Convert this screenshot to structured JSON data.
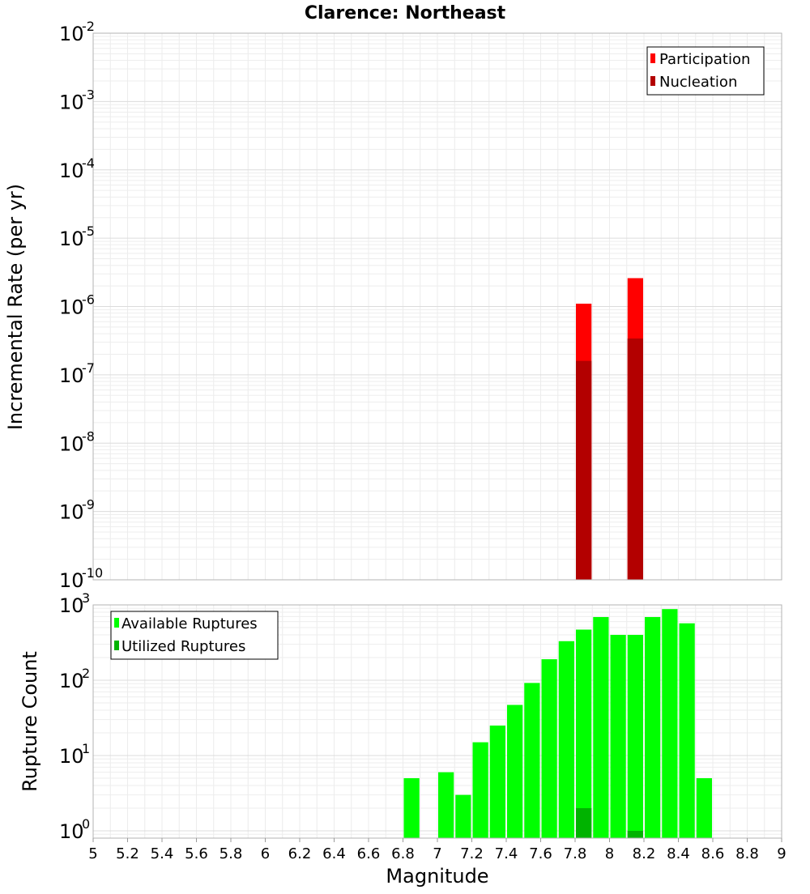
{
  "title": "Clarence: Northeast",
  "chart_data": [
    {
      "type": "bar",
      "title": "Clarence: Northeast",
      "xlabel": "",
      "ylabel": "Incremental Rate (per yr)",
      "yscale": "log",
      "ylim": [
        1e-10,
        0.01
      ],
      "xlim": [
        5,
        9
      ],
      "grid": true,
      "legend_position": "top-right",
      "y_ticks": [
        {
          "base": "10",
          "exp": "-2",
          "value": 0.01
        },
        {
          "base": "10",
          "exp": "-3",
          "value": 0.001
        },
        {
          "base": "10",
          "exp": "-4",
          "value": 0.0001
        },
        {
          "base": "10",
          "exp": "-5",
          "value": 1e-05
        },
        {
          "base": "10",
          "exp": "-6",
          "value": 1e-06
        },
        {
          "base": "10",
          "exp": "-7",
          "value": 1e-07
        },
        {
          "base": "10",
          "exp": "-8",
          "value": 1e-08
        },
        {
          "base": "10",
          "exp": "-9",
          "value": 1e-09
        },
        {
          "base": "10",
          "exp": "-10",
          "value": 1e-10
        }
      ],
      "series": [
        {
          "name": "Participation",
          "color": "#ff0000",
          "points": [
            {
              "x": 7.85,
              "y": 1.1e-06
            },
            {
              "x": 8.15,
              "y": 2.6e-06
            }
          ]
        },
        {
          "name": "Nucleation",
          "color": "#b30000",
          "points": [
            {
              "x": 7.85,
              "y": 1.6e-07
            },
            {
              "x": 8.15,
              "y": 3.4e-07
            }
          ]
        }
      ]
    },
    {
      "type": "bar",
      "title": "",
      "xlabel": "Magnitude",
      "ylabel": "Rupture Count",
      "yscale": "log",
      "ylim": [
        0.8,
        1000
      ],
      "xlim": [
        5,
        9
      ],
      "grid": true,
      "legend_position": "top-left",
      "x_ticks": [
        "5",
        "5.2",
        "5.4",
        "5.6",
        "5.8",
        "6",
        "6.2",
        "6.4",
        "6.6",
        "6.8",
        "7",
        "7.2",
        "7.4",
        "7.6",
        "7.8",
        "8",
        "8.2",
        "8.4",
        "8.6",
        "8.8",
        "9"
      ],
      "y_ticks": [
        {
          "base": "10",
          "exp": "3",
          "value": 1000
        },
        {
          "base": "10",
          "exp": "2",
          "value": 100
        },
        {
          "base": "10",
          "exp": "1",
          "value": 10
        },
        {
          "base": "10",
          "exp": "0",
          "value": 1
        }
      ],
      "series": [
        {
          "name": "Available Ruptures",
          "color": "#00ff00",
          "points": [
            {
              "x": 6.85,
              "y": 5
            },
            {
              "x": 7.05,
              "y": 6
            },
            {
              "x": 7.15,
              "y": 3
            },
            {
              "x": 7.25,
              "y": 15
            },
            {
              "x": 7.35,
              "y": 25
            },
            {
              "x": 7.45,
              "y": 47
            },
            {
              "x": 7.55,
              "y": 92
            },
            {
              "x": 7.65,
              "y": 190
            },
            {
              "x": 7.75,
              "y": 330
            },
            {
              "x": 7.85,
              "y": 470
            },
            {
              "x": 7.95,
              "y": 690
            },
            {
              "x": 8.05,
              "y": 400
            },
            {
              "x": 8.15,
              "y": 400
            },
            {
              "x": 8.25,
              "y": 690
            },
            {
              "x": 8.35,
              "y": 880
            },
            {
              "x": 8.45,
              "y": 570
            },
            {
              "x": 8.55,
              "y": 5
            }
          ]
        },
        {
          "name": "Utilized Ruptures",
          "color": "#00b300",
          "points": [
            {
              "x": 7.85,
              "y": 2
            },
            {
              "x": 8.15,
              "y": 1
            }
          ]
        }
      ]
    }
  ]
}
